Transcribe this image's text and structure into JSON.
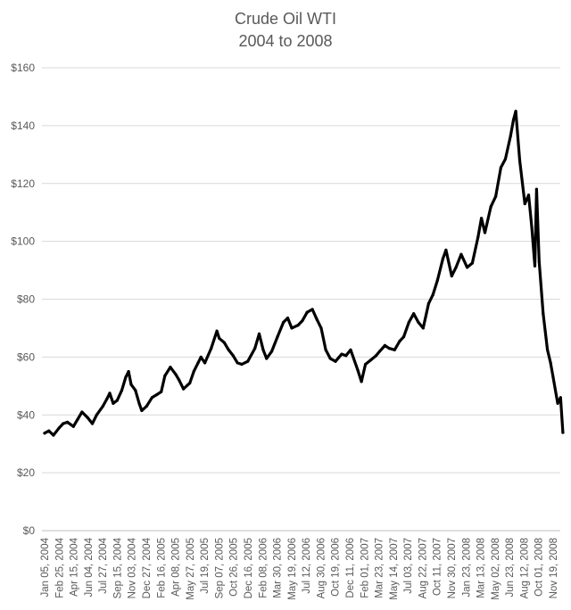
{
  "chart_data": {
    "type": "line",
    "title": "Crude Oil WTI",
    "subtitle": "2004 to 2008",
    "xlabel": "",
    "ylabel": "",
    "ylim": [
      0,
      160
    ],
    "yticks": [
      0,
      20,
      40,
      60,
      80,
      100,
      120,
      140,
      160
    ],
    "ytick_labels": [
      "$0",
      "$20",
      "$40",
      "$60",
      "$80",
      "$100",
      "$120",
      "$140",
      "$160"
    ],
    "xtick_labels": [
      "Jan 05, 2004",
      "Feb 25, 2004",
      "Apr 15, 2004",
      "Jun 04, 2004",
      "Jul 27, 2004",
      "Sep 15, 2004",
      "Nov 03, 2004",
      "Dec 27, 2004",
      "Feb 16, 2005",
      "Apr 08, 2005",
      "May 27, 2005",
      "Jul 19, 2005",
      "Sep 07, 2005",
      "Oct 26, 2005",
      "Dec 16, 2005",
      "Feb 08, 2006",
      "Mar 30, 2006",
      "May 19, 2006",
      "Jul 12, 2006",
      "Aug 30, 2006",
      "Oct 19, 2006",
      "Dec 11, 2006",
      "Feb 01, 2007",
      "Mar 23, 2007",
      "May 14, 2007",
      "Jul 03, 2007",
      "Aug 22, 2007",
      "Oct 11, 2007",
      "Nov 30, 2007",
      "Jan 23, 2008",
      "Mar 13, 2008",
      "May 02, 2008",
      "Jun 23, 2008",
      "Aug 12, 2008",
      "Oct 01, 2008",
      "Nov 19, 2008"
    ],
    "grid": true,
    "legend": "none",
    "series": [
      {
        "color": "#000000",
        "x": [
          "2004-01-05",
          "2004-01-20",
          "2004-02-05",
          "2004-02-25",
          "2004-03-10",
          "2004-03-25",
          "2004-04-15",
          "2004-04-30",
          "2004-05-15",
          "2004-06-04",
          "2004-06-20",
          "2004-07-05",
          "2004-07-27",
          "2004-08-10",
          "2004-08-20",
          "2004-09-01",
          "2004-09-15",
          "2004-10-01",
          "2004-10-15",
          "2004-10-25",
          "2004-11-03",
          "2004-11-18",
          "2004-12-01",
          "2004-12-10",
          "2004-12-27",
          "2005-01-15",
          "2005-02-01",
          "2005-02-16",
          "2005-03-01",
          "2005-03-20",
          "2005-04-08",
          "2005-04-20",
          "2005-05-05",
          "2005-05-27",
          "2005-06-10",
          "2005-06-25",
          "2005-07-05",
          "2005-07-19",
          "2005-08-10",
          "2005-08-30",
          "2005-09-07",
          "2005-09-25",
          "2005-10-10",
          "2005-10-26",
          "2005-11-10",
          "2005-11-25",
          "2005-12-16",
          "2006-01-10",
          "2006-01-25",
          "2006-02-08",
          "2006-02-20",
          "2006-03-10",
          "2006-03-30",
          "2006-04-20",
          "2006-05-05",
          "2006-05-19",
          "2006-06-10",
          "2006-06-25",
          "2006-07-12",
          "2006-07-30",
          "2006-08-15",
          "2006-08-30",
          "2006-09-15",
          "2006-10-01",
          "2006-10-19",
          "2006-11-10",
          "2006-11-25",
          "2006-12-11",
          "2007-01-05",
          "2007-01-18",
          "2007-02-01",
          "2007-02-20",
          "2007-03-10",
          "2007-03-23",
          "2007-04-10",
          "2007-04-25",
          "2007-05-14",
          "2007-06-01",
          "2007-06-15",
          "2007-07-03",
          "2007-07-20",
          "2007-08-05",
          "2007-08-22",
          "2007-09-10",
          "2007-09-25",
          "2007-10-11",
          "2007-10-30",
          "2007-11-10",
          "2007-11-30",
          "2007-12-15",
          "2008-01-02",
          "2008-01-23",
          "2008-02-10",
          "2008-03-01",
          "2008-03-13",
          "2008-03-25",
          "2008-04-15",
          "2008-05-02",
          "2008-05-20",
          "2008-06-05",
          "2008-06-23",
          "2008-07-03",
          "2008-07-11",
          "2008-07-25",
          "2008-08-12",
          "2008-08-25",
          "2008-09-05",
          "2008-09-16",
          "2008-09-22",
          "2008-10-01",
          "2008-10-15",
          "2008-10-30",
          "2008-11-10",
          "2008-11-19",
          "2008-12-05",
          "2008-12-15",
          "2008-12-23"
        ],
        "values": [
          33.7,
          34.5,
          33.0,
          35.5,
          37.0,
          37.5,
          36.0,
          38.5,
          41.0,
          39.0,
          37.0,
          40.0,
          43.0,
          45.5,
          47.5,
          44.0,
          45.0,
          48.5,
          53.0,
          55.0,
          50.5,
          48.5,
          44.0,
          41.5,
          43.0,
          46.0,
          47.0,
          48.0,
          53.5,
          56.5,
          54.0,
          52.0,
          49.0,
          51.0,
          55.0,
          58.0,
          60.0,
          58.0,
          63.0,
          69.0,
          66.5,
          65.0,
          62.5,
          60.5,
          58.0,
          57.5,
          58.5,
          63.0,
          68.0,
          62.5,
          59.5,
          62.0,
          67.0,
          72.0,
          73.5,
          70.0,
          71.0,
          72.5,
          75.5,
          76.5,
          73.0,
          70.0,
          62.5,
          59.5,
          58.5,
          61.0,
          60.5,
          62.5,
          55.5,
          51.5,
          57.5,
          59.0,
          60.5,
          62.0,
          64.0,
          63.0,
          62.5,
          65.5,
          67.0,
          72.0,
          75.0,
          72.0,
          70.0,
          78.5,
          81.5,
          86.5,
          94.0,
          97.0,
          88.0,
          91.0,
          95.5,
          91.0,
          92.5,
          101.5,
          108.0,
          103.0,
          112.0,
          115.5,
          125.5,
          128.5,
          136.5,
          142.0,
          145.0,
          128.0,
          113.0,
          116.0,
          105.0,
          91.5,
          118.0,
          93.0,
          75.0,
          62.5,
          58.0,
          53.0,
          44.0,
          46.0,
          33.9
        ]
      }
    ]
  }
}
